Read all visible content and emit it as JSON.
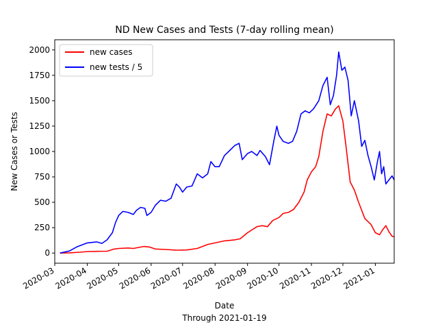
{
  "chart_data": {
    "type": "line",
    "title": "ND New Cases and Tests (7-day rolling mean)",
    "xlabel": "Date",
    "xlabel_sub": "Through 2021-01-19",
    "ylabel": "New Cases or Tests",
    "xlim": [
      "2020-03-01",
      "2021-01-19"
    ],
    "ylim": [
      -100,
      2100
    ],
    "x_ticks": [
      "2020-03",
      "2020-04",
      "2020-05",
      "2020-06",
      "2020-07",
      "2020-08",
      "2020-09",
      "2020-10",
      "2020-11",
      "2020-12",
      "2021-01"
    ],
    "x_tick_dates": [
      "2020-03-01",
      "2020-04-01",
      "2020-05-01",
      "2020-06-01",
      "2020-07-01",
      "2020-08-01",
      "2020-09-01",
      "2020-10-01",
      "2020-11-01",
      "2020-12-01",
      "2021-01-01"
    ],
    "y_ticks": [
      0,
      250,
      500,
      750,
      1000,
      1250,
      1500,
      1750,
      2000
    ],
    "grid": false,
    "legend_position": "top-left",
    "series": [
      {
        "name": "new cases",
        "color": "#ff0000",
        "points": [
          [
            "2020-03-06",
            0
          ],
          [
            "2020-03-15",
            2
          ],
          [
            "2020-03-25",
            8
          ],
          [
            "2020-04-01",
            15
          ],
          [
            "2020-04-10",
            17
          ],
          [
            "2020-04-20",
            18
          ],
          [
            "2020-04-26",
            38
          ],
          [
            "2020-05-01",
            45
          ],
          [
            "2020-05-10",
            50
          ],
          [
            "2020-05-15",
            45
          ],
          [
            "2020-05-20",
            55
          ],
          [
            "2020-05-25",
            65
          ],
          [
            "2020-05-30",
            60
          ],
          [
            "2020-06-05",
            40
          ],
          [
            "2020-06-15",
            35
          ],
          [
            "2020-06-25",
            28
          ],
          [
            "2020-07-05",
            30
          ],
          [
            "2020-07-15",
            45
          ],
          [
            "2020-07-25",
            85
          ],
          [
            "2020-08-01",
            100
          ],
          [
            "2020-08-10",
            120
          ],
          [
            "2020-08-20",
            130
          ],
          [
            "2020-08-25",
            140
          ],
          [
            "2020-09-01",
            200
          ],
          [
            "2020-09-10",
            260
          ],
          [
            "2020-09-15",
            270
          ],
          [
            "2020-09-20",
            260
          ],
          [
            "2020-09-25",
            320
          ],
          [
            "2020-10-01",
            350
          ],
          [
            "2020-10-05",
            390
          ],
          [
            "2020-10-10",
            400
          ],
          [
            "2020-10-15",
            430
          ],
          [
            "2020-10-20",
            500
          ],
          [
            "2020-10-25",
            600
          ],
          [
            "2020-10-28",
            720
          ],
          [
            "2020-11-01",
            800
          ],
          [
            "2020-11-05",
            850
          ],
          [
            "2020-11-08",
            950
          ],
          [
            "2020-11-12",
            1200
          ],
          [
            "2020-11-16",
            1370
          ],
          [
            "2020-11-20",
            1350
          ],
          [
            "2020-11-24",
            1420
          ],
          [
            "2020-11-27",
            1450
          ],
          [
            "2020-12-01",
            1300
          ],
          [
            "2020-12-04",
            1050
          ],
          [
            "2020-12-08",
            700
          ],
          [
            "2020-12-12",
            620
          ],
          [
            "2020-12-16",
            500
          ],
          [
            "2020-12-22",
            340
          ],
          [
            "2020-12-28",
            280
          ],
          [
            "2021-01-01",
            200
          ],
          [
            "2021-01-05",
            180
          ],
          [
            "2021-01-08",
            230
          ],
          [
            "2021-01-11",
            270
          ],
          [
            "2021-01-14",
            210
          ],
          [
            "2021-01-17",
            165
          ],
          [
            "2021-01-19",
            160
          ]
        ]
      },
      {
        "name": "new tests / 5",
        "color": "#0000ff",
        "points": [
          [
            "2020-03-06",
            0
          ],
          [
            "2020-03-15",
            20
          ],
          [
            "2020-03-22",
            60
          ],
          [
            "2020-04-01",
            100
          ],
          [
            "2020-04-10",
            110
          ],
          [
            "2020-04-15",
            95
          ],
          [
            "2020-04-20",
            130
          ],
          [
            "2020-04-25",
            200
          ],
          [
            "2020-04-28",
            300
          ],
          [
            "2020-05-01",
            370
          ],
          [
            "2020-05-05",
            410
          ],
          [
            "2020-05-10",
            400
          ],
          [
            "2020-05-15",
            380
          ],
          [
            "2020-05-18",
            420
          ],
          [
            "2020-05-22",
            450
          ],
          [
            "2020-05-26",
            440
          ],
          [
            "2020-05-28",
            370
          ],
          [
            "2020-06-01",
            400
          ],
          [
            "2020-06-05",
            470
          ],
          [
            "2020-06-10",
            520
          ],
          [
            "2020-06-15",
            510
          ],
          [
            "2020-06-20",
            540
          ],
          [
            "2020-06-25",
            680
          ],
          [
            "2020-06-28",
            650
          ],
          [
            "2020-07-01",
            600
          ],
          [
            "2020-07-05",
            650
          ],
          [
            "2020-07-10",
            660
          ],
          [
            "2020-07-15",
            780
          ],
          [
            "2020-07-20",
            740
          ],
          [
            "2020-07-25",
            780
          ],
          [
            "2020-07-28",
            900
          ],
          [
            "2020-08-01",
            850
          ],
          [
            "2020-08-05",
            850
          ],
          [
            "2020-08-10",
            960
          ],
          [
            "2020-08-15",
            1010
          ],
          [
            "2020-08-20",
            1060
          ],
          [
            "2020-08-24",
            1080
          ],
          [
            "2020-08-27",
            920
          ],
          [
            "2020-09-01",
            980
          ],
          [
            "2020-09-05",
            1000
          ],
          [
            "2020-09-10",
            960
          ],
          [
            "2020-09-13",
            1010
          ],
          [
            "2020-09-18",
            950
          ],
          [
            "2020-09-22",
            870
          ],
          [
            "2020-09-26",
            1100
          ],
          [
            "2020-09-29",
            1250
          ],
          [
            "2020-10-01",
            1160
          ],
          [
            "2020-10-05",
            1100
          ],
          [
            "2020-10-10",
            1080
          ],
          [
            "2020-10-14",
            1100
          ],
          [
            "2020-10-18",
            1200
          ],
          [
            "2020-10-22",
            1370
          ],
          [
            "2020-10-26",
            1400
          ],
          [
            "2020-10-30",
            1380
          ],
          [
            "2020-11-03",
            1420
          ],
          [
            "2020-11-08",
            1500
          ],
          [
            "2020-11-12",
            1650
          ],
          [
            "2020-11-16",
            1730
          ],
          [
            "2020-11-19",
            1460
          ],
          [
            "2020-11-22",
            1550
          ],
          [
            "2020-11-25",
            1750
          ],
          [
            "2020-11-27",
            1980
          ],
          [
            "2020-11-30",
            1800
          ],
          [
            "2020-12-03",
            1830
          ],
          [
            "2020-12-06",
            1700
          ],
          [
            "2020-12-09",
            1350
          ],
          [
            "2020-12-12",
            1500
          ],
          [
            "2020-12-16",
            1300
          ],
          [
            "2020-12-19",
            1050
          ],
          [
            "2020-12-22",
            1110
          ],
          [
            "2020-12-25",
            960
          ],
          [
            "2020-12-28",
            850
          ],
          [
            "2020-12-31",
            720
          ],
          [
            "2021-01-03",
            900
          ],
          [
            "2021-01-05",
            1000
          ],
          [
            "2021-01-07",
            780
          ],
          [
            "2021-01-09",
            850
          ],
          [
            "2021-01-11",
            680
          ],
          [
            "2021-01-14",
            720
          ],
          [
            "2021-01-17",
            760
          ],
          [
            "2021-01-19",
            720
          ]
        ]
      }
    ]
  }
}
